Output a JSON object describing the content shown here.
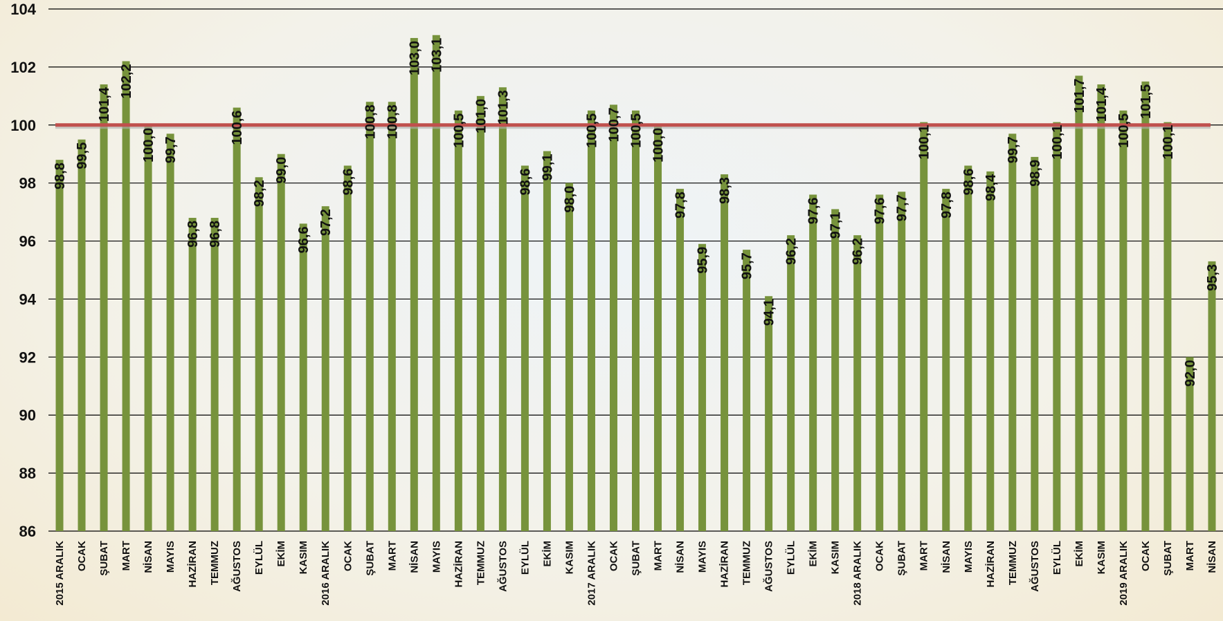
{
  "chart_data": {
    "type": "bar",
    "categories": [
      "2015 ARALIK",
      "OCAK",
      "ŞUBAT",
      "MART",
      "NİSAN",
      "MAYIS",
      "HAZİRAN",
      "TEMMUZ",
      "AĞUSTOS",
      "EYLÜL",
      "EKİM",
      "KASIM",
      "2016 ARALIK",
      "OCAK",
      "ŞUBAT",
      "MART",
      "NİSAN",
      "MAYIS",
      "HAZİRAN",
      "TEMMUZ",
      "AĞUSTOS",
      "EYLÜL",
      "EKİM",
      "KASIM",
      "2017 ARALIK",
      "OCAK",
      "ŞUBAT",
      "MART",
      "NİSAN",
      "MAYIS",
      "HAZİRAN",
      "TEMMUZ",
      "AĞUSTOS",
      "EYLÜL",
      "EKİM",
      "KASIM",
      "2018 ARALIK",
      "OCAK",
      "ŞUBAT",
      "MART",
      "NİSAN",
      "MAYIS",
      "HAZİRAN",
      "TEMMUZ",
      "AĞUSTOS",
      "EYLÜL",
      "EKİM",
      "KASIM",
      "2019 ARALIK",
      "OCAK",
      "ŞUBAT",
      "MART",
      "NİSAN"
    ],
    "values": [
      98.8,
      99.5,
      101.4,
      102.2,
      100.0,
      99.7,
      96.8,
      96.8,
      100.6,
      98.2,
      99.0,
      96.6,
      97.2,
      98.6,
      100.8,
      100.8,
      103.0,
      103.1,
      100.5,
      101.0,
      101.3,
      98.6,
      99.1,
      98.0,
      100.5,
      100.7,
      100.5,
      100.0,
      97.8,
      95.9,
      98.3,
      95.7,
      94.1,
      96.2,
      97.6,
      97.1,
      96.2,
      97.6,
      97.7,
      100.1,
      97.8,
      98.6,
      98.4,
      99.7,
      98.9,
      100.1,
      101.7,
      101.4,
      100.5,
      101.5,
      100.1,
      92.0,
      95.3
    ],
    "labels": [
      "98,8",
      "99,5",
      "101,4",
      "102,2",
      "100,0",
      "99,7",
      "96,8",
      "96,8",
      "100,6",
      "98,2",
      "99,0",
      "96,6",
      "97,2",
      "98,6",
      "100,8",
      "100,8",
      "103,0",
      "103,1",
      "100,5",
      "101,0",
      "101,3",
      "98,6",
      "99,1",
      "98,0",
      "100,5",
      "100,7",
      "100,5",
      "100,0",
      "97,8",
      "95,9",
      "98,3",
      "95,7",
      "94,1",
      "96,2",
      "97,6",
      "97,1",
      "96,2",
      "97,6",
      "97,7",
      "100,1",
      "97,8",
      "98,6",
      "98,4",
      "99,7",
      "98,9",
      "100,1",
      "101,7",
      "101,4",
      "100,5",
      "101,5",
      "100,1",
      "92,0",
      "95,3"
    ],
    "ytick_labels": [
      "86",
      "88",
      "90",
      "92",
      "94",
      "96",
      "98",
      "100",
      "102",
      "104"
    ],
    "ylim": [
      86,
      104
    ],
    "reference_line": 100,
    "grid": true,
    "legend": "none",
    "title": "",
    "xlabel": "",
    "ylabel": "",
    "colors": {
      "bar": "#77933c",
      "reference_line": "#c0504d",
      "grid": "#000000"
    }
  }
}
